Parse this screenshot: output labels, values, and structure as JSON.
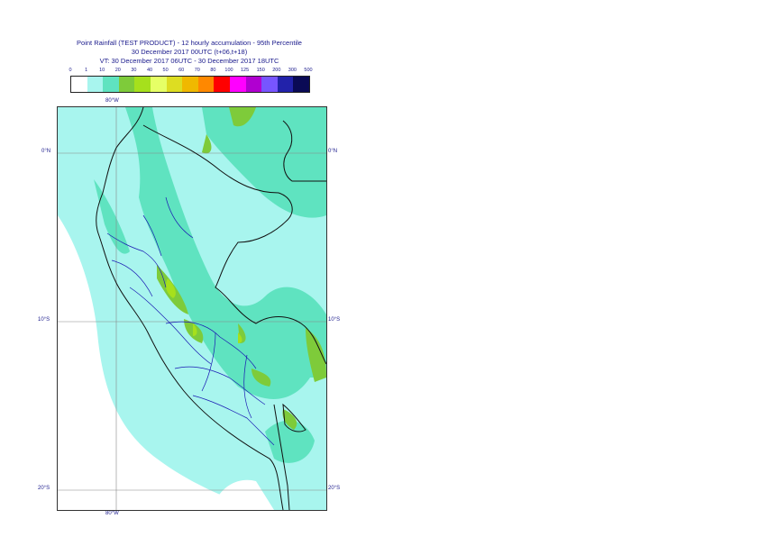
{
  "title": {
    "line1": "Point Rainfall (TEST PRODUCT) - 12 hourly accumulation - 95th Percentile",
    "line2": "30 December 2017 00UTC (t+06,t+18)",
    "line3": "VT: 30 December 2017 06UTC - 30 December 2017 18UTC"
  },
  "legend": {
    "levels": [
      "0",
      "1",
      "10",
      "20",
      "30",
      "40",
      "50",
      "60",
      "70",
      "80",
      "100",
      "125",
      "150",
      "200",
      "300",
      "500"
    ],
    "colors": [
      "#ffffff",
      "#a8f5ee",
      "#5fe3c0",
      "#7ecb3a",
      "#a6e01c",
      "#e6ff66",
      "#dddd22",
      "#f0b800",
      "#ff8800",
      "#ff0000",
      "#ff00ff",
      "#b000d0",
      "#7755ff",
      "#2222aa",
      "#0a0a55"
    ]
  },
  "axes": {
    "lon_label": "80°W",
    "lat_labels": [
      "0°N",
      "10°S",
      "20°S"
    ]
  }
}
